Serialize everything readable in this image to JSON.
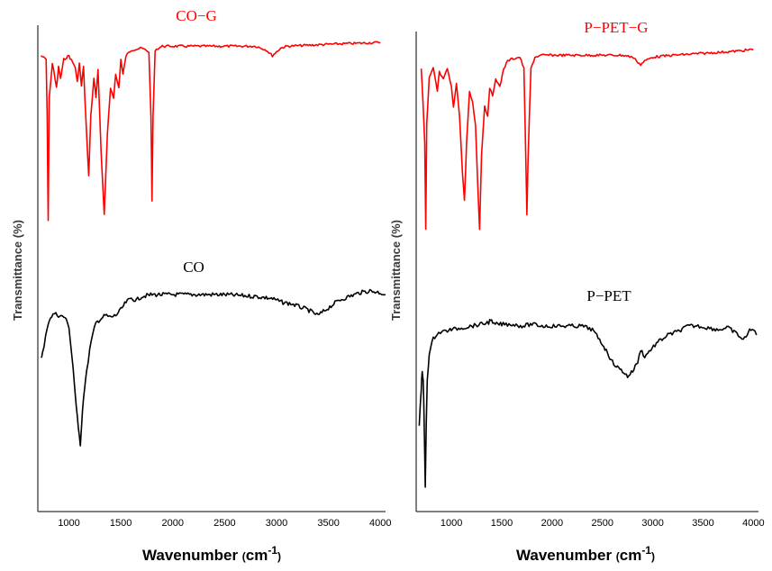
{
  "chart_data": [
    {
      "type": "line",
      "ylabel": "Transmittance (%)",
      "xlabel_main": "Wavenumber",
      "xlabel_unit_open": "(",
      "xlabel_unit": "cm",
      "xlabel_exp": "-1",
      "xlabel_unit_close": ")",
      "xlim": [
        700,
        4050
      ],
      "xticks": [
        "1000",
        "1500",
        "2000",
        "2500",
        "3000",
        "3500",
        "4000"
      ],
      "series": [
        {
          "name": "CO−G",
          "color": "#ff0000",
          "points": [
            [
              730,
              8
            ],
            [
              780,
              10
            ],
            [
              790,
              40
            ],
            [
              800,
              95
            ],
            [
              810,
              30
            ],
            [
              840,
              12
            ],
            [
              880,
              25
            ],
            [
              900,
              14
            ],
            [
              920,
              20
            ],
            [
              950,
              10
            ],
            [
              1000,
              8
            ],
            [
              1060,
              14
            ],
            [
              1080,
              22
            ],
            [
              1100,
              12
            ],
            [
              1120,
              24
            ],
            [
              1140,
              14
            ],
            [
              1170,
              50
            ],
            [
              1190,
              72
            ],
            [
              1210,
              40
            ],
            [
              1240,
              20
            ],
            [
              1260,
              30
            ],
            [
              1280,
              15
            ],
            [
              1310,
              60
            ],
            [
              1340,
              92
            ],
            [
              1370,
              50
            ],
            [
              1400,
              25
            ],
            [
              1430,
              30
            ],
            [
              1450,
              18
            ],
            [
              1480,
              25
            ],
            [
              1500,
              10
            ],
            [
              1520,
              18
            ],
            [
              1550,
              8
            ],
            [
              1600,
              5
            ],
            [
              1700,
              4
            ],
            [
              1770,
              6
            ],
            [
              1790,
              40
            ],
            [
              1800,
              85
            ],
            [
              1810,
              40
            ],
            [
              1830,
              5
            ],
            [
              1900,
              3
            ],
            [
              2000,
              3
            ],
            [
              2200,
              3
            ],
            [
              2500,
              3
            ],
            [
              2800,
              3
            ],
            [
              2900,
              5
            ],
            [
              2960,
              8
            ],
            [
              3000,
              6
            ],
            [
              3040,
              4
            ],
            [
              3100,
              3
            ],
            [
              3500,
              2
            ],
            [
              4000,
              1
            ]
          ]
        },
        {
          "name": "CO",
          "color": "#000000",
          "points": [
            [
              730,
              34
            ],
            [
              745,
              32
            ],
            [
              760,
              29
            ],
            [
              790,
              18
            ],
            [
              820,
              13
            ],
            [
              860,
              11
            ],
            [
              900,
              12
            ],
            [
              960,
              13
            ],
            [
              1000,
              18
            ],
            [
              1040,
              40
            ],
            [
              1070,
              60
            ],
            [
              1090,
              72
            ],
            [
              1110,
              80
            ],
            [
              1130,
              62
            ],
            [
              1150,
              50
            ],
            [
              1170,
              42
            ],
            [
              1200,
              30
            ],
            [
              1230,
              22
            ],
            [
              1260,
              16
            ],
            [
              1300,
              14
            ],
            [
              1350,
              12
            ],
            [
              1400,
              13
            ],
            [
              1450,
              12
            ],
            [
              1500,
              9
            ],
            [
              1550,
              5
            ],
            [
              1600,
              3
            ],
            [
              1650,
              4
            ],
            [
              1700,
              2
            ],
            [
              1800,
              1
            ],
            [
              2000,
              1
            ],
            [
              2200,
              1
            ],
            [
              2500,
              1
            ],
            [
              2800,
              2
            ],
            [
              2950,
              3
            ],
            [
              3050,
              5
            ],
            [
              3150,
              6
            ],
            [
              3300,
              9
            ],
            [
              3400,
              12
            ],
            [
              3500,
              8
            ],
            [
              3600,
              4
            ],
            [
              3800,
              0
            ],
            [
              3900,
              -1
            ],
            [
              4000,
              0
            ],
            [
              4050,
              1
            ]
          ]
        }
      ]
    },
    {
      "type": "line",
      "ylabel": "Transmittance (%)",
      "xlabel_main": "Wavenumber",
      "xlabel_unit_open": "(",
      "xlabel_unit": "cm",
      "xlabel_exp": "-1",
      "xlabel_unit_close": ")",
      "xlim": [
        650,
        4050
      ],
      "xticks": [
        "1000",
        "1500",
        "2000",
        "2500",
        "3000",
        "3500",
        "4000"
      ],
      "series": [
        {
          "name": "P−PET−G",
          "color": "#ff0000",
          "points": [
            [
              700,
              10
            ],
            [
              720,
              30
            ],
            [
              735,
              50
            ],
            [
              745,
              95
            ],
            [
              755,
              40
            ],
            [
              780,
              15
            ],
            [
              820,
              10
            ],
            [
              860,
              22
            ],
            [
              880,
              12
            ],
            [
              920,
              16
            ],
            [
              960,
              10
            ],
            [
              1000,
              20
            ],
            [
              1020,
              30
            ],
            [
              1050,
              18
            ],
            [
              1080,
              35
            ],
            [
              1110,
              65
            ],
            [
              1130,
              80
            ],
            [
              1150,
              50
            ],
            [
              1180,
              22
            ],
            [
              1210,
              28
            ],
            [
              1240,
              40
            ],
            [
              1260,
              70
            ],
            [
              1280,
              95
            ],
            [
              1300,
              55
            ],
            [
              1330,
              30
            ],
            [
              1360,
              35
            ],
            [
              1380,
              20
            ],
            [
              1410,
              25
            ],
            [
              1440,
              15
            ],
            [
              1480,
              20
            ],
            [
              1520,
              10
            ],
            [
              1560,
              6
            ],
            [
              1600,
              5
            ],
            [
              1680,
              4
            ],
            [
              1720,
              10
            ],
            [
              1740,
              60
            ],
            [
              1750,
              88
            ],
            [
              1760,
              60
            ],
            [
              1790,
              10
            ],
            [
              1830,
              4
            ],
            [
              1900,
              3
            ],
            [
              2100,
              3
            ],
            [
              2300,
              3
            ],
            [
              2500,
              3
            ],
            [
              2700,
              3
            ],
            [
              2800,
              4
            ],
            [
              2880,
              8
            ],
            [
              2920,
              6
            ],
            [
              2960,
              5
            ],
            [
              3000,
              4
            ],
            [
              3200,
              3
            ],
            [
              3500,
              2
            ],
            [
              3800,
              1
            ],
            [
              4000,
              0
            ]
          ]
        },
        {
          "name": "P−PET",
          "color": "#000000",
          "points": [
            [
              680,
              60
            ],
            [
              690,
              50
            ],
            [
              700,
              40
            ],
            [
              710,
              30
            ],
            [
              720,
              35
            ],
            [
              730,
              60
            ],
            [
              740,
              95
            ],
            [
              750,
              60
            ],
            [
              760,
              35
            ],
            [
              780,
              20
            ],
            [
              820,
              12
            ],
            [
              860,
              9
            ],
            [
              920,
              8
            ],
            [
              1000,
              7
            ],
            [
              1100,
              6
            ],
            [
              1200,
              5
            ],
            [
              1300,
              4
            ],
            [
              1370,
              3
            ],
            [
              1390,
              1
            ],
            [
              1410,
              4
            ],
            [
              1500,
              4
            ],
            [
              1600,
              4
            ],
            [
              1700,
              5
            ],
            [
              1800,
              4
            ],
            [
              1900,
              5
            ],
            [
              2000,
              5
            ],
            [
              2100,
              5
            ],
            [
              2200,
              5
            ],
            [
              2300,
              5
            ],
            [
              2400,
              7
            ],
            [
              2500,
              15
            ],
            [
              2550,
              20
            ],
            [
              2600,
              25
            ],
            [
              2650,
              28
            ],
            [
              2700,
              30
            ],
            [
              2750,
              33
            ],
            [
              2800,
              30
            ],
            [
              2850,
              25
            ],
            [
              2880,
              18
            ],
            [
              2920,
              22
            ],
            [
              2980,
              18
            ],
            [
              3050,
              14
            ],
            [
              3150,
              10
            ],
            [
              3250,
              8
            ],
            [
              3350,
              5
            ],
            [
              3450,
              5
            ],
            [
              3550,
              6
            ],
            [
              3650,
              7
            ],
            [
              3750,
              6
            ],
            [
              3850,
              10
            ],
            [
              3900,
              13
            ],
            [
              3950,
              8
            ],
            [
              4000,
              7
            ],
            [
              4030,
              10
            ]
          ]
        }
      ]
    }
  ]
}
